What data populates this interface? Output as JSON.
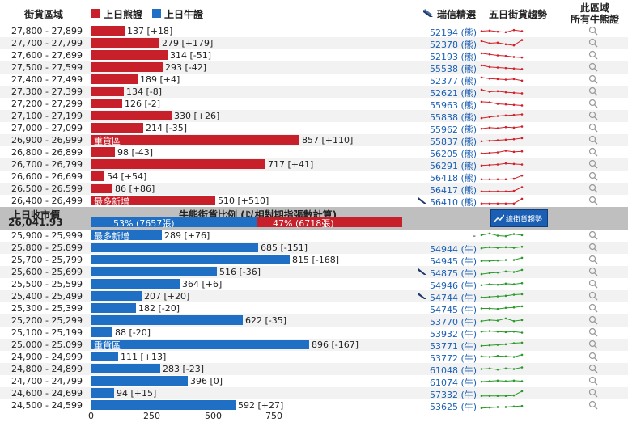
{
  "header": {
    "col_range": "街貨區域",
    "legend_bear": "上日熊證",
    "legend_bull": "上日牛證",
    "col_picks": "瑞信精選",
    "col_trend": "五日街貨趨勢",
    "col_all_line1": "此區域",
    "col_all_line2": "所有牛熊證"
  },
  "colors": {
    "bear": "#c8202a",
    "bull": "#1f6fc5",
    "code": "#1a5fb4"
  },
  "bear_rows": [
    {
      "range": "27,800 - 27,899",
      "value": 137,
      "label": "137 [+18]",
      "code": "52194 (熊)",
      "flag": "",
      "trend": [
        0.5,
        0.45,
        0.55,
        0.6,
        0.4,
        0.5
      ]
    },
    {
      "range": "27,700 - 27,799",
      "value": 279,
      "label": "279 [+179]",
      "code": "52378 (熊)",
      "flag": "",
      "trend": [
        0.3,
        0.5,
        0.45,
        0.6,
        0.7,
        0.2
      ]
    },
    {
      "range": "27,600 - 27,699",
      "value": 314,
      "label": "314 [-51]",
      "code": "52193 (熊)",
      "flag": "",
      "trend": [
        0.3,
        0.4,
        0.5,
        0.55,
        0.65,
        0.7
      ]
    },
    {
      "range": "27,500 - 27,599",
      "value": 293,
      "label": "293 [-42]",
      "code": "55538 (熊)",
      "flag": "",
      "trend": [
        0.3,
        0.45,
        0.5,
        0.55,
        0.6,
        0.65
      ]
    },
    {
      "range": "27,400 - 27,499",
      "value": 189,
      "label": "189 [+4]",
      "code": "52377 (熊)",
      "flag": "",
      "trend": [
        0.3,
        0.4,
        0.45,
        0.5,
        0.45,
        0.6
      ]
    },
    {
      "range": "27,300 - 27,399",
      "value": 134,
      "label": "134 [-8]",
      "code": "52621 (熊)",
      "flag": "",
      "trend": [
        0.3,
        0.5,
        0.45,
        0.55,
        0.6,
        0.65
      ]
    },
    {
      "range": "27,200 - 27,299",
      "value": 126,
      "label": "126 [-2]",
      "code": "55963 (熊)",
      "flag": "",
      "trend": [
        0.3,
        0.35,
        0.5,
        0.55,
        0.6,
        0.65
      ]
    },
    {
      "range": "27,100 - 27,199",
      "value": 330,
      "label": "330 [+26]",
      "code": "55838 (熊)",
      "flag": "",
      "trend": [
        0.7,
        0.6,
        0.5,
        0.45,
        0.4,
        0.35
      ]
    },
    {
      "range": "27,000 - 27,099",
      "value": 214,
      "label": "214 [-35]",
      "code": "55962 (熊)",
      "flag": "",
      "trend": [
        0.55,
        0.45,
        0.5,
        0.4,
        0.45,
        0.35
      ]
    },
    {
      "range": "26,900 - 26,999",
      "value": 857,
      "label": "857 [+110]",
      "code": "55837 (熊)",
      "flag": "重貨區",
      "trend": [
        0.6,
        0.55,
        0.5,
        0.45,
        0.4,
        0.3
      ]
    },
    {
      "range": "26,800 - 26,899",
      "value": 98,
      "label": "98 [-43]",
      "code": "56205 (熊)",
      "flag": "",
      "trend": [
        0.6,
        0.55,
        0.5,
        0.35,
        0.45,
        0.4
      ]
    },
    {
      "range": "26,700 - 26,799",
      "value": 717,
      "label": "717 [+41]",
      "code": "56291 (熊)",
      "flag": "",
      "trend": [
        0.6,
        0.55,
        0.5,
        0.4,
        0.45,
        0.5
      ]
    },
    {
      "range": "26,600 - 26,699",
      "value": 54,
      "label": "54 [+54]",
      "code": "56418 (熊)",
      "flag": "",
      "trend": [
        0.75,
        0.75,
        0.75,
        0.75,
        0.7,
        0.4
      ]
    },
    {
      "range": "26,500 - 26,599",
      "value": 86,
      "label": "86 [+86]",
      "code": "56417 (熊)",
      "flag": "",
      "trend": [
        0.75,
        0.75,
        0.75,
        0.75,
        0.7,
        0.35
      ]
    },
    {
      "range": "26,400 - 26,499",
      "value": 510,
      "label": "510 [+510]",
      "code": "56410 (熊)",
      "flag": "最多新增",
      "trend": [
        0.75,
        0.75,
        0.75,
        0.75,
        0.75,
        0.3
      ],
      "wing": true
    }
  ],
  "middle": {
    "prev_close_label": "上日收市價",
    "prev_close_value": "26,041.93",
    "ratio_title": "牛熊街貨比例 (以相對期指張數計算)",
    "bull_pct": 53,
    "bull_text": "53% (7657張)",
    "bear_pct": 47,
    "bear_text": "47% (6718張)",
    "trend_button": "總街貨趨勢"
  },
  "bull_rows": [
    {
      "range": "25,900 - 25,999",
      "value": 289,
      "label": "289 [+76]",
      "code": "-",
      "flag": "最多新增",
      "trend": [
        0.45,
        0.3,
        0.5,
        0.55,
        0.35,
        0.45
      ]
    },
    {
      "range": "25,800 - 25,899",
      "value": 685,
      "label": "685 [-151]",
      "code": "54944 (牛)",
      "flag": "",
      "trend": [
        0.55,
        0.45,
        0.5,
        0.45,
        0.5,
        0.4
      ]
    },
    {
      "range": "25,700 - 25,799",
      "value": 815,
      "label": "815 [-168]",
      "code": "54945 (牛)",
      "flag": "",
      "trend": [
        0.6,
        0.6,
        0.55,
        0.5,
        0.5,
        0.3
      ]
    },
    {
      "range": "25,600 - 25,699",
      "value": 516,
      "label": "516 [-36]",
      "code": "54875 (牛)",
      "flag": "",
      "trend": [
        0.7,
        0.6,
        0.55,
        0.45,
        0.5,
        0.3
      ],
      "wing": true
    },
    {
      "range": "25,500 - 25,599",
      "value": 364,
      "label": "364 [+6]",
      "code": "54946 (牛)",
      "flag": "",
      "trend": [
        0.6,
        0.5,
        0.55,
        0.45,
        0.5,
        0.4
      ]
    },
    {
      "range": "25,400 - 25,499",
      "value": 207,
      "label": "207 [+20]",
      "code": "54744 (牛)",
      "flag": "",
      "trend": [
        0.6,
        0.55,
        0.5,
        0.45,
        0.35,
        0.3
      ],
      "wing": true
    },
    {
      "range": "25,300 - 25,399",
      "value": 182,
      "label": "182 [-20]",
      "code": "54745 (牛)",
      "flag": "",
      "trend": [
        0.5,
        0.5,
        0.55,
        0.45,
        0.4,
        0.3
      ]
    },
    {
      "range": "25,200 - 25,299",
      "value": 622,
      "label": "622 [-35]",
      "code": "53770 (牛)",
      "flag": "",
      "trend": [
        0.55,
        0.45,
        0.5,
        0.3,
        0.55,
        0.45
      ]
    },
    {
      "range": "25,100 - 25,199",
      "value": 88,
      "label": "88 [-20]",
      "code": "53932 (牛)",
      "flag": "",
      "trend": [
        0.4,
        0.35,
        0.4,
        0.45,
        0.4,
        0.5
      ]
    },
    {
      "range": "25,000 - 25,099",
      "value": 896,
      "label": "896 [-167]",
      "code": "53771 (牛)",
      "flag": "重貨區",
      "trend": [
        0.6,
        0.55,
        0.5,
        0.45,
        0.35,
        0.3
      ]
    },
    {
      "range": "24,900 - 24,999",
      "value": 111,
      "label": "111 [+13]",
      "code": "53772 (牛)",
      "flag": "",
      "trend": [
        0.45,
        0.5,
        0.4,
        0.45,
        0.5,
        0.3
      ]
    },
    {
      "range": "24,800 - 24,899",
      "value": 283,
      "label": "283 [-23]",
      "code": "61048 (牛)",
      "flag": "",
      "trend": [
        0.5,
        0.45,
        0.55,
        0.45,
        0.5,
        0.35
      ]
    },
    {
      "range": "24,700 - 24,799",
      "value": 396,
      "label": "396 [0]",
      "code": "61074 (牛)",
      "flag": "",
      "trend": [
        0.55,
        0.5,
        0.45,
        0.5,
        0.45,
        0.5
      ]
    },
    {
      "range": "24,600 - 24,699",
      "value": 94,
      "label": "94 [+15]",
      "code": "57332 (牛)",
      "flag": "",
      "trend": [
        0.75,
        0.75,
        0.75,
        0.75,
        0.7,
        0.3
      ]
    },
    {
      "range": "24,500 - 24,599",
      "value": 592,
      "label": "592 [+27]",
      "code": "53625 (牛)",
      "flag": "",
      "trend": [
        0.75,
        0.7,
        0.65,
        0.65,
        0.6,
        0.55
      ]
    }
  ],
  "axis": {
    "ticks": [
      "0",
      "250",
      "500",
      "750"
    ]
  }
}
